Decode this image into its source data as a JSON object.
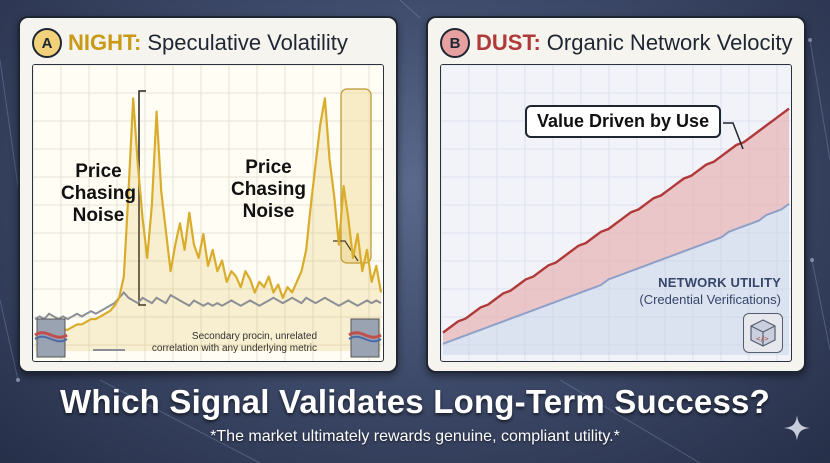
{
  "panel_a": {
    "badge": "A",
    "title_key": "NIGHT:",
    "title_rest": "Speculative Volatility",
    "annotation_left": "Price\nChasing\nNoise",
    "annotation_right": "Price\nChasing\nNoise",
    "note": "Secondary procin, unrelated\ncorrelation with any underlying metric"
  },
  "panel_b": {
    "badge": "B",
    "title_key": "DUST:",
    "title_rest": "Organic Network Velocity",
    "callout": "Value Driven by Use",
    "utility_title": "NETWORK UTILITY",
    "utility_subtitle": "(Credential Verifications)"
  },
  "headline": "Which Signal Validates Long-Term Success?",
  "subline": "*The market ultimately rewards genuine, compliant utility.*",
  "colors": {
    "night_gold": "#d9ad2b",
    "secondary_gray": "#8c8f96",
    "dust_red": "#b03a3a",
    "utility_blue": "#8ea0c8"
  },
  "chart_data": [
    {
      "type": "line",
      "title": "NIGHT: Speculative Volatility",
      "series": [
        {
          "values": [
            5,
            5,
            6,
            6,
            7,
            7,
            8,
            8,
            9,
            10,
            10,
            11,
            12,
            12,
            13,
            14,
            15,
            17,
            20,
            28,
            60,
            95,
            70,
            50,
            35,
            55,
            90,
            60,
            45,
            30,
            40,
            48,
            38,
            52,
            40,
            35,
            44,
            32,
            38,
            30,
            34,
            26,
            30,
            28,
            24,
            30,
            27,
            22,
            26,
            24,
            28,
            22,
            25,
            20,
            24,
            22,
            26,
            30,
            38,
            55,
            70,
            85,
            95,
            72,
            58,
            40,
            62,
            50,
            35,
            44,
            30,
            38,
            26,
            32,
            22
          ]
        },
        {
          "values": [
            12,
            13,
            12,
            14,
            13,
            12,
            13,
            12,
            13,
            14,
            13,
            14,
            15,
            14,
            15,
            16,
            17,
            18,
            20,
            22,
            20,
            19,
            18,
            20,
            19,
            18,
            20,
            19,
            18,
            21,
            20,
            19,
            18,
            17,
            19,
            18,
            17,
            18,
            17,
            18,
            17,
            18,
            19,
            18,
            17,
            18,
            19,
            18,
            17,
            18,
            19,
            20,
            19,
            18,
            19,
            20,
            19,
            18,
            20,
            19,
            18,
            19,
            20,
            19,
            18,
            17,
            18,
            19,
            18,
            17,
            18,
            19,
            18,
            19,
            18
          ]
        }
      ],
      "ylim": [
        0,
        100
      ]
    },
    {
      "type": "area",
      "title": "DUST: Organic Network Velocity",
      "series": [
        {
          "values": [
            8,
            10,
            12,
            13,
            15,
            17,
            18,
            20,
            22,
            23,
            25,
            27,
            28,
            30,
            32,
            33,
            35,
            37,
            39,
            40,
            42,
            44,
            45,
            47,
            49,
            51,
            52,
            54,
            56,
            57,
            59,
            61,
            63,
            64,
            66,
            68,
            69,
            71,
            73,
            75,
            76,
            78,
            80,
            82,
            84,
            86,
            88
          ]
        },
        {
          "name": "NETWORK UTILITY",
          "values": [
            4,
            5,
            6,
            7,
            8,
            9,
            10,
            11,
            12,
            13,
            14,
            15,
            16,
            17,
            18,
            19,
            20,
            21,
            22,
            23,
            24,
            25,
            27,
            28,
            29,
            30,
            31,
            32,
            33,
            34,
            35,
            36,
            37,
            38,
            39,
            40,
            41,
            42,
            44,
            45,
            46,
            47,
            48,
            50,
            51,
            52,
            54
          ]
        }
      ],
      "ylim": [
        0,
        100
      ]
    }
  ]
}
